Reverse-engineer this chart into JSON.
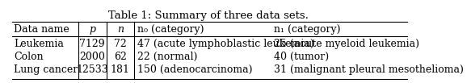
{
  "title": "Table 1: Summary of three data sets.",
  "col_headers": [
    "Data name",
    "p",
    "n",
    "n₀ (category)",
    "n₁ (category)"
  ],
  "header_italic": [
    false,
    true,
    true,
    false,
    false
  ],
  "rows": [
    [
      "Leukemia",
      "7129",
      "72",
      "47 (acute lymphoblastic leukemia)",
      "25 (acute myeloid leukemia)"
    ],
    [
      "Colon",
      "2000",
      "62",
      "22 (normal)",
      "40 (tumor)"
    ],
    [
      "Lung cancer",
      "12533",
      "181",
      "150 (adenocarcinoma)",
      "31 (malignant pleural mesothelioma)"
    ]
  ],
  "background_color": "#ffffff",
  "text_color": "#000000",
  "font_size": 9.0,
  "title_font_size": 9.5
}
